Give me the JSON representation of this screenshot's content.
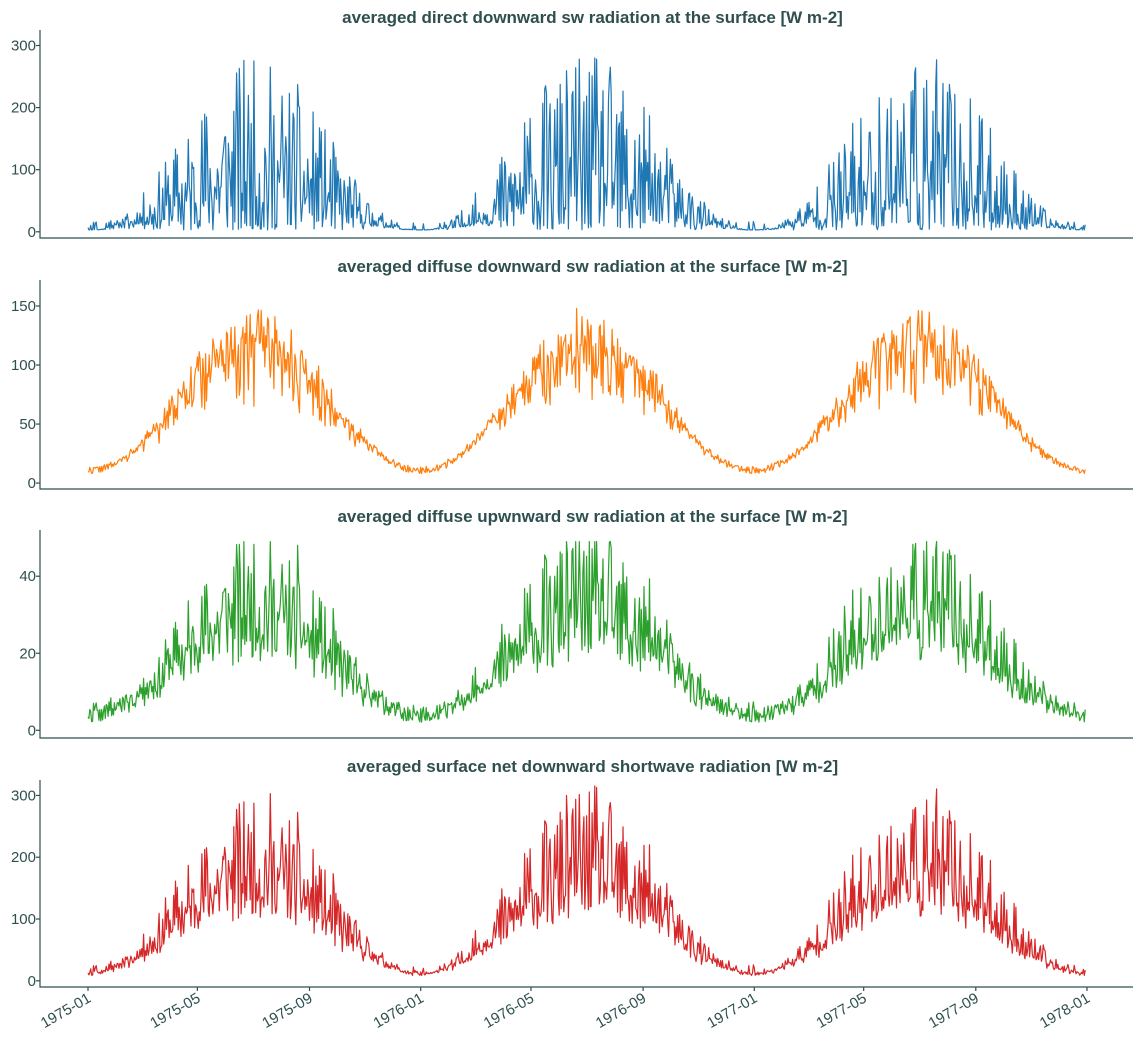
{
  "chart_data": [
    {
      "type": "line",
      "title": "averaged direct downward sw radiation at the surface [W m-2]",
      "color": "#1f77b4",
      "ylim": [
        -10,
        325
      ],
      "yticks": [
        "0",
        "100",
        "200",
        "300"
      ],
      "x_range": [
        "1975-01-01",
        "1977-12-31"
      ],
      "series": [
        {
          "x": [],
          "values": []
        }
      ]
    },
    {
      "type": "line",
      "title": "averaged diffuse downward sw radiation at the surface [W m-2]",
      "color": "#ff7f0e",
      "ylim": [
        -5,
        172
      ],
      "yticks": [
        "0",
        "50",
        "100",
        "150"
      ],
      "x_range": [
        "1975-01-01",
        "1977-12-31"
      ],
      "series": [
        {
          "x": [],
          "values": []
        }
      ]
    },
    {
      "type": "line",
      "title": "averaged diffuse upwnward sw radiation at the surface [W m-2]",
      "color": "#2ca02c",
      "ylim": [
        -2,
        52
      ],
      "yticks": [
        "0",
        "20",
        "40"
      ],
      "x_range": [
        "1975-01-01",
        "1977-12-31"
      ],
      "series": [
        {
          "x": [],
          "values": []
        }
      ]
    },
    {
      "type": "line",
      "title": "averaged surface net downward shortwave radiation [W m-2]",
      "color": "#d62728",
      "ylim": [
        -10,
        325
      ],
      "yticks": [
        "0",
        "100",
        "200",
        "300"
      ],
      "x_range": [
        "1975-01-01",
        "1977-12-31"
      ],
      "series": [
        {
          "x": [],
          "values": []
        }
      ]
    }
  ],
  "xaxis": {
    "ticks": [
      {
        "date": "1975-01-01",
        "label": "1975-01"
      },
      {
        "date": "1975-05-01",
        "label": "1975-05"
      },
      {
        "date": "1975-09-01",
        "label": "1975-09"
      },
      {
        "date": "1976-01-01",
        "label": "1976-01"
      },
      {
        "date": "1976-05-01",
        "label": "1976-05"
      },
      {
        "date": "1976-09-01",
        "label": "1976-09"
      },
      {
        "date": "1977-01-01",
        "label": "1977-01"
      },
      {
        "date": "1977-05-01",
        "label": "1977-05"
      },
      {
        "date": "1977-09-01",
        "label": "1977-09"
      },
      {
        "date": "1978-01-01",
        "label": "1978-01"
      }
    ]
  }
}
